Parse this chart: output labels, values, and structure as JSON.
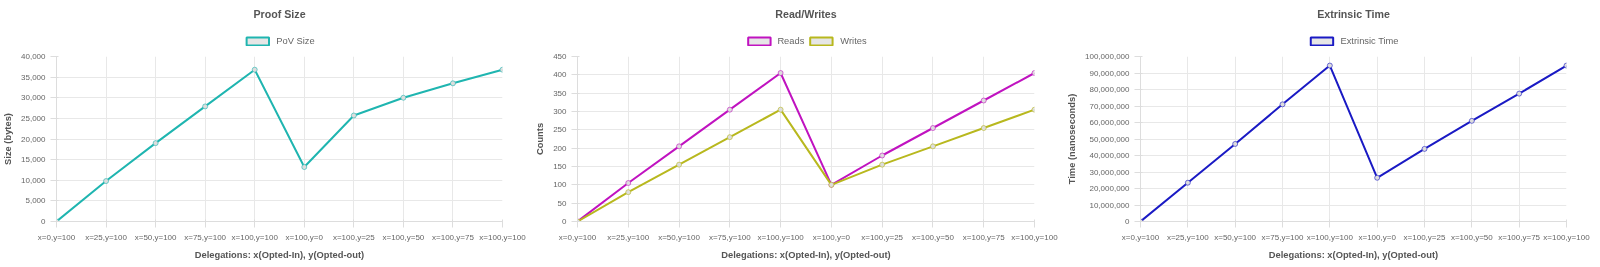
{
  "chart_data": [
    {
      "type": "line",
      "title": "Proof Size",
      "xlabel": "Delegations: x(Opted-In), y(Opted-out)",
      "ylabel": "Size (bytes)",
      "categories": [
        "x=0,y=100",
        "x=25,y=100",
        "x=50,y=100",
        "x=75,y=100",
        "x=100,y=100",
        "x=100,y=0",
        "x=100,y=25",
        "x=100,y=50",
        "x=100,y=75",
        "x=100,y=100"
      ],
      "series": [
        {
          "name": "PoV Size",
          "color": "#1fb5b0",
          "values": [
            0,
            9800,
            19000,
            27900,
            36800,
            13200,
            25700,
            30000,
            33500,
            36800
          ]
        }
      ],
      "ylim": [
        0,
        40000
      ],
      "yticks": [
        0,
        {
          "value": 5000,
          "label": "5,000"
        },
        {
          "value": 10000,
          "label": "10,000"
        },
        {
          "value": 15000,
          "label": "15,000"
        },
        {
          "value": 20000,
          "label": "20,000"
        },
        {
          "value": 25000,
          "label": "25,000"
        },
        {
          "value": 30000,
          "label": "30,000"
        },
        {
          "value": 35000,
          "label": "35,000"
        },
        {
          "value": 40000,
          "label": "40,000"
        }
      ],
      "grid": true,
      "legend": "top",
      "marker": "circle",
      "line_style": "solid"
    },
    {
      "type": "line",
      "title": "Read/Writes",
      "xlabel": "Delegations: x(Opted-In), y(Opted-out)",
      "ylabel": "Counts",
      "categories": [
        "x=0,y=100",
        "x=25,y=100",
        "x=50,y=100",
        "x=75,y=100",
        "x=100,y=100",
        "x=100,y=0",
        "x=100,y=25",
        "x=100,y=50",
        "x=100,y=75",
        "x=100,y=100"
      ],
      "series": [
        {
          "name": "Reads",
          "color": "#c013c0",
          "values": [
            0,
            105,
            205,
            305,
            405,
            100,
            180,
            255,
            330,
            405
          ]
        },
        {
          "name": "Writes",
          "color": "#b8b81e",
          "values": [
            0,
            80,
            155,
            230,
            305,
            100,
            155,
            205,
            255,
            305
          ]
        }
      ],
      "ylim": [
        0,
        450
      ],
      "yticks": [
        0,
        50,
        100,
        150,
        200,
        250,
        300,
        350,
        400,
        450
      ],
      "grid": true,
      "legend": "top",
      "marker": "circle",
      "line_style": "solid"
    },
    {
      "type": "line",
      "title": "Extrinsic Time",
      "xlabel": "Delegations: x(Opted-In), y(Opted-out)",
      "ylabel": "Time (nanoseconds)",
      "categories": [
        "x=0,y=100",
        "x=25,y=100",
        "x=50,y=100",
        "x=75,y=100",
        "x=100,y=100",
        "x=100,y=0",
        "x=100,y=25",
        "x=100,y=50",
        "x=100,y=75",
        "x=100,y=100"
      ],
      "series": [
        {
          "name": "Extrinsic Time",
          "color": "#1a1ac4",
          "values": [
            0,
            23500000,
            47000000,
            71000000,
            94500000,
            26500000,
            44000000,
            61000000,
            77500000,
            94500000
          ]
        }
      ],
      "ylim": [
        0,
        100000000
      ],
      "yticks": [
        0,
        {
          "value": 10000000,
          "label": "10,000,000"
        },
        {
          "value": 20000000,
          "label": "20,000,000"
        },
        {
          "value": 30000000,
          "label": "30,000,000"
        },
        {
          "value": 40000000,
          "label": "40,000,000"
        },
        {
          "value": 50000000,
          "label": "50,000,000"
        },
        {
          "value": 60000000,
          "label": "60,000,000"
        },
        {
          "value": 70000000,
          "label": "70,000,000"
        },
        {
          "value": 80000000,
          "label": "80,000,000"
        },
        {
          "value": 90000000,
          "label": "90,000,000"
        },
        {
          "value": 100000000,
          "label": "100,000,000"
        }
      ],
      "grid": true,
      "legend": "top",
      "marker": "circle",
      "line_style": "solid"
    }
  ]
}
